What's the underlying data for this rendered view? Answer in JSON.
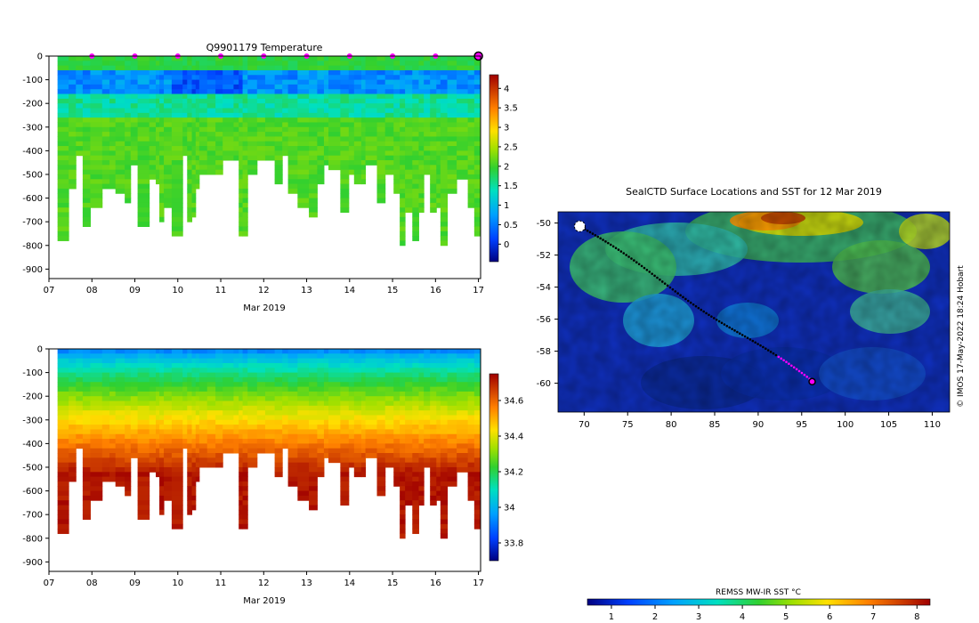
{
  "chart_data": [
    {
      "id": "temperature",
      "type": "heatmap",
      "title": "Q9901179  Temperature",
      "xlabel": "Mar 2019",
      "x_ticks": [
        "07",
        "08",
        "09",
        "10",
        "11",
        "12",
        "13",
        "14",
        "15",
        "16",
        "17"
      ],
      "x_range": [
        7,
        17.05
      ],
      "y_ticks": [
        0,
        -100,
        -200,
        -300,
        -400,
        -500,
        -600,
        -700,
        -800,
        -900
      ],
      "y_range": [
        -940,
        0
      ],
      "colorbar": {
        "ticks": [
          0,
          0.5,
          1,
          1.5,
          2,
          2.5,
          3,
          3.5,
          4
        ],
        "range": [
          -0.45,
          4.35
        ]
      },
      "surface_markers": [
        8,
        9,
        10,
        11,
        12,
        13,
        14,
        15,
        16,
        17
      ],
      "profile_depth_range_m": [
        -800,
        -400
      ]
    },
    {
      "id": "salinity",
      "type": "heatmap",
      "title": "",
      "xlabel": "Mar 2019",
      "x_ticks": [
        "07",
        "08",
        "09",
        "10",
        "11",
        "12",
        "13",
        "14",
        "15",
        "16",
        "17"
      ],
      "x_range": [
        7,
        17.05
      ],
      "y_ticks": [
        0,
        -100,
        -200,
        -300,
        -400,
        -500,
        -600,
        -700,
        -800,
        -900
      ],
      "y_range": [
        -940,
        0
      ],
      "colorbar": {
        "ticks": [
          33.8,
          34,
          34.2,
          34.4,
          34.6
        ],
        "range": [
          33.7,
          34.75
        ]
      }
    },
    {
      "id": "sst_map",
      "type": "heatmap",
      "title": "SealCTD Surface Locations and SST for 12 Mar 2019",
      "x_ticks": [
        "70",
        "75",
        "80",
        "85",
        "90",
        "95",
        "100",
        "105",
        "110"
      ],
      "x_range": [
        67,
        112
      ],
      "y_ticks": [
        "-50",
        "-52",
        "-54",
        "-56",
        "-58",
        "-60"
      ],
      "y_range": [
        -61.8,
        -49.3
      ],
      "colorbar_label": "REMSS MW-IR SST °C",
      "colorbar": {
        "ticks": [
          1,
          2,
          3,
          4,
          5,
          6,
          7,
          8
        ],
        "range": [
          0.45,
          8.3
        ]
      },
      "credit": "© IMOS 17-May-2022 18:24 Hobart",
      "track_start": [
        69.5,
        -50.2
      ],
      "track_end": [
        96.2,
        -59.9
      ]
    }
  ]
}
